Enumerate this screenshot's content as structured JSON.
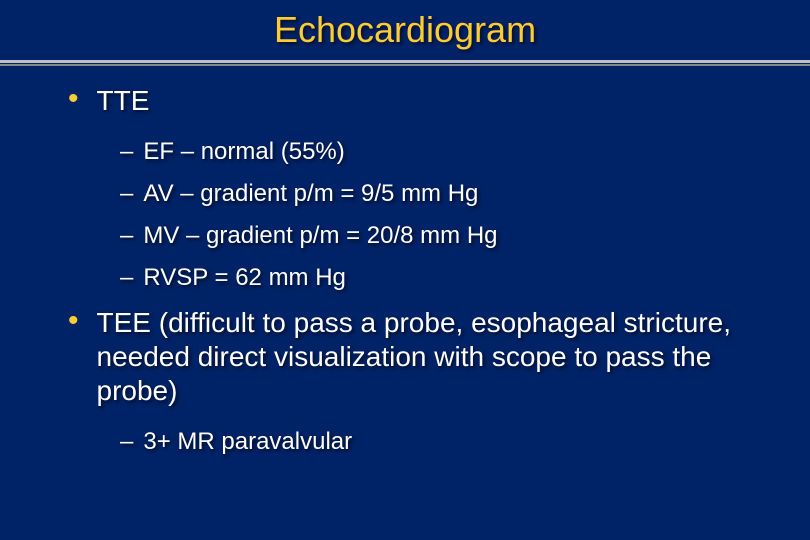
{
  "title": "Echocardiogram",
  "colors": {
    "background": "#002266",
    "title_color": "#ffcc33",
    "bullet_color": "#ffcc33",
    "text_color": "#ffffff",
    "divider_top": "#c0c0c0",
    "divider_bottom": "#888888"
  },
  "typography": {
    "title_fontsize": 36,
    "level1_fontsize": 28,
    "level2_fontsize": 24,
    "font_family": "Arial"
  },
  "items": [
    {
      "level": 1,
      "text": "TTE"
    },
    {
      "level": 2,
      "text": "EF – normal (55%)"
    },
    {
      "level": 2,
      "text": "AV – gradient p/m = 9/5 mm Hg"
    },
    {
      "level": 2,
      "text": "MV – gradient p/m = 20/8 mm Hg"
    },
    {
      "level": 2,
      "text": "RVSP = 62 mm Hg"
    },
    {
      "level": 1,
      "text": "TEE (difficult to pass a probe, esophageal stricture, needed direct visualization with scope to pass the probe)"
    },
    {
      "level": 2,
      "text": "3+ MR paravalvular"
    }
  ]
}
